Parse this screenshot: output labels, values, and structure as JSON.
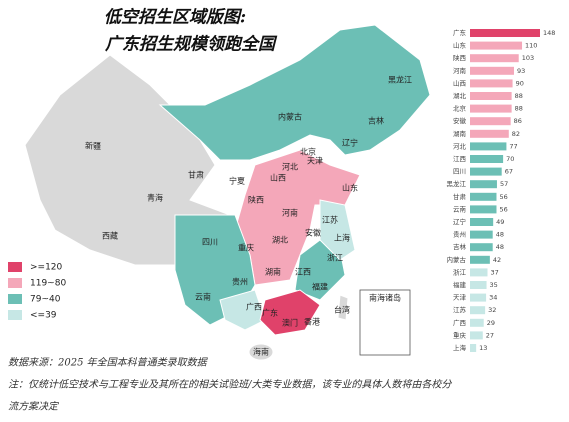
{
  "title_lines": [
    "低空招生区域版图:",
    "广东招生规模领跑全国"
  ],
  "legend": [
    {
      "label": ">=120",
      "color": "#e0426a"
    },
    {
      "label": "119~80",
      "color": "#f4a7b9"
    },
    {
      "label": "79~40",
      "color": "#6cbfb5"
    },
    {
      "label": "<=39",
      "color": "#c6e7e5"
    }
  ],
  "map_labels": [
    "新疆",
    "西藏",
    "青海",
    "甘肃",
    "内蒙古",
    "黑龙江",
    "吉林",
    "辽宁",
    "北京",
    "天津",
    "河北",
    "山西",
    "宁夏",
    "陕西",
    "山东",
    "河南",
    "江苏",
    "安徽",
    "湖北",
    "四川",
    "重庆",
    "上海",
    "浙江",
    "湖南",
    "江西",
    "贵州",
    "云南",
    "广西",
    "广东",
    "福建",
    "台湾",
    "海南",
    "澳门",
    "香港",
    "南海诸岛"
  ],
  "chart_data": {
    "type": "bar",
    "categories": [
      "广东",
      "山东",
      "陕西",
      "河南",
      "山西",
      "湖北",
      "北京",
      "安徽",
      "湖南",
      "河北",
      "江西",
      "四川",
      "黑龙江",
      "甘肃",
      "云南",
      "辽宁",
      "贵州",
      "吉林",
      "内蒙古",
      "浙江",
      "福建",
      "天津",
      "江苏",
      "广西",
      "重庆",
      "上海"
    ],
    "values": [
      148,
      110,
      103,
      93,
      90,
      88,
      88,
      86,
      82,
      77,
      70,
      67,
      57,
      56,
      56,
      49,
      48,
      48,
      42,
      37,
      35,
      34,
      32,
      29,
      27,
      13
    ],
    "colors": [
      "#e0426a",
      "#f4a7b9",
      "#f4a7b9",
      "#f4a7b9",
      "#f4a7b9",
      "#f4a7b9",
      "#f4a7b9",
      "#f4a7b9",
      "#f4a7b9",
      "#6cbfb5",
      "#6cbfb5",
      "#6cbfb5",
      "#6cbfb5",
      "#6cbfb5",
      "#6cbfb5",
      "#6cbfb5",
      "#6cbfb5",
      "#6cbfb5",
      "#6cbfb5",
      "#c6e7e5",
      "#c6e7e5",
      "#c6e7e5",
      "#c6e7e5",
      "#c6e7e5",
      "#c6e7e5",
      "#c6e7e5"
    ]
  },
  "notes": [
    "数据来源：2025 年全国本科普通类录取数据",
    "注：仅统计低空技术与工程专业及其所在的相关试验班/大类专业数据，该专业的具体人数将由各校分",
    "流方案决定"
  ]
}
